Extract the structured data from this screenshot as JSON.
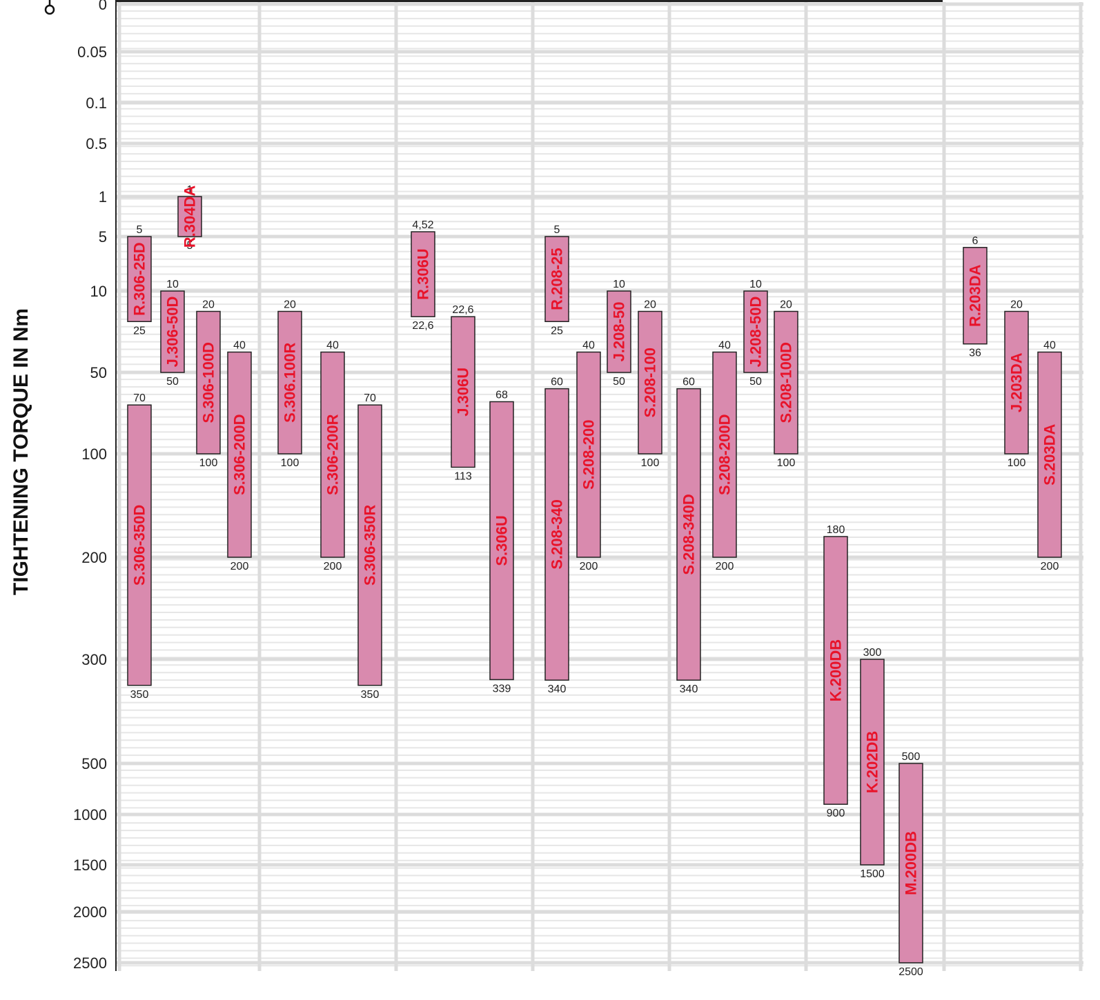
{
  "chart_data": {
    "type": "bar",
    "orientation": "vertical-range",
    "ylabel": "TIGHTENING TORQUE IN Nm",
    "y_ticks": [
      "0",
      "0.05",
      "0.1",
      "0.5",
      "1",
      "5",
      "10",
      "50",
      "100",
      "200",
      "300",
      "500",
      "1000",
      "1500",
      "2000",
      "2500"
    ],
    "y_axis_direction": "increasing-downward",
    "grid": true,
    "colors": {
      "bar_fill": "#d98aae",
      "bar_name": "#e8132a",
      "grid_major": "#dcdcdc",
      "grid_minor": "#e6e6e6"
    },
    "series": [
      {
        "name": "R.306-25D",
        "min": 5,
        "max": 25,
        "min_label": "5",
        "max_label": "25"
      },
      {
        "name": "S.306-350D",
        "min": 70,
        "max": 350,
        "min_label": "70",
        "max_label": "350"
      },
      {
        "name": "J.306-50D",
        "min": 10,
        "max": 50,
        "min_label": "10",
        "max_label": "50"
      },
      {
        "name": "R.304DA",
        "min": 1,
        "max": 5,
        "min_label": "1",
        "max_label": "5"
      },
      {
        "name": "S.306-100D",
        "min": 20,
        "max": 100,
        "min_label": "20",
        "max_label": "100"
      },
      {
        "name": "S.306-200D",
        "min": 40,
        "max": 200,
        "min_label": "40",
        "max_label": "200"
      },
      {
        "name": "S.306.100R",
        "min": 20,
        "max": 100,
        "min_label": "20",
        "max_label": "100"
      },
      {
        "name": "S.306-200R",
        "min": 40,
        "max": 200,
        "min_label": "40",
        "max_label": "200"
      },
      {
        "name": "S.306-350R",
        "min": 70,
        "max": 350,
        "min_label": "70",
        "max_label": "350"
      },
      {
        "name": "R.306U",
        "min": 4.52,
        "max": 22.6,
        "min_label": "4,52",
        "max_label": "22,6"
      },
      {
        "name": "J.306U",
        "min": 22.6,
        "max": 113,
        "min_label": "22,6",
        "max_label": "113"
      },
      {
        "name": "S.306U",
        "min": 68,
        "max": 339,
        "min_label": "68",
        "max_label": "339"
      },
      {
        "name": "R.208-25",
        "min": 5,
        "max": 25,
        "min_label": "5",
        "max_label": "25"
      },
      {
        "name": "S.208-340",
        "min": 60,
        "max": 340,
        "min_label": "60",
        "max_label": "340"
      },
      {
        "name": "S.208-200",
        "min": 40,
        "max": 200,
        "min_label": "40",
        "max_label": "200"
      },
      {
        "name": "J.208-50",
        "min": 10,
        "max": 50,
        "min_label": "10",
        "max_label": "50"
      },
      {
        "name": "S.208-100",
        "min": 20,
        "max": 100,
        "min_label": "20",
        "max_label": "100"
      },
      {
        "name": "S.208-340D",
        "min": 60,
        "max": 340,
        "min_label": "60",
        "max_label": "340"
      },
      {
        "name": "S.208-200D",
        "min": 40,
        "max": 200,
        "min_label": "40",
        "max_label": "200"
      },
      {
        "name": "J.208-50D",
        "min": 10,
        "max": 50,
        "min_label": "10",
        "max_label": "50"
      },
      {
        "name": "S.208-100D",
        "min": 20,
        "max": 100,
        "min_label": "20",
        "max_label": "100"
      },
      {
        "name": "K.200DB",
        "min": 180,
        "max": 900,
        "min_label": "180",
        "max_label": "900"
      },
      {
        "name": "K.202DB",
        "min": 300,
        "max": 1500,
        "min_label": "300",
        "max_label": "1500"
      },
      {
        "name": "M.200DB",
        "min": 500,
        "max": 2500,
        "min_label": "500",
        "max_label": "2500"
      },
      {
        "name": "R.203DA",
        "min": 6,
        "max": 36,
        "min_label": "6",
        "max_label": "36"
      },
      {
        "name": "J.203DA",
        "min": 20,
        "max": 100,
        "min_label": "20",
        "max_label": "100"
      },
      {
        "name": "S.203DA",
        "min": 40,
        "max": 200,
        "min_label": "40",
        "max_label": "200"
      }
    ]
  }
}
